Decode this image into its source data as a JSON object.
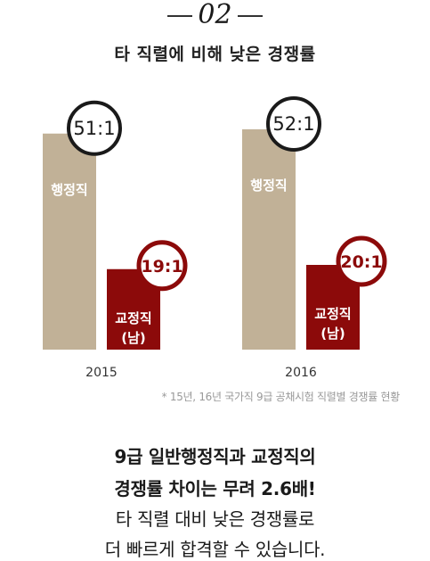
{
  "header": {
    "number": "02",
    "subtitle": "타 직렬에 비해 낮은 경쟁률"
  },
  "chart_data": {
    "type": "bar",
    "categories": [
      "2015",
      "2016"
    ],
    "series": [
      {
        "name": "행정직",
        "values": [
          51,
          52
        ],
        "labels": [
          "51:1",
          "52:1"
        ],
        "color": "#c1b197",
        "bar_label": [
          "행정직"
        ]
      },
      {
        "name": "교정직 (남)",
        "values": [
          19,
          20
        ],
        "labels": [
          "19:1",
          "20:1"
        ],
        "color": "#8c0a0a",
        "bar_label": [
          "교정직",
          "(남)"
        ]
      }
    ],
    "ylim": [
      0,
      52
    ]
  },
  "footnote": "* 15년, 16년 국가직 9급 공채시험 직렬별 경쟁률 현황",
  "body": {
    "line1": "9급 일반행정직과 교정직의",
    "line2": "경쟁률 차이는 무려 2.6배!",
    "line3": "타 직렬 대비 낮은 경쟁률로",
    "line4": "더 빠르게 합격할 수 있습니다."
  },
  "colors": {
    "admin": "#c1b197",
    "correction": "#8c0a0a",
    "ring_dark": "#1a1a1a"
  }
}
